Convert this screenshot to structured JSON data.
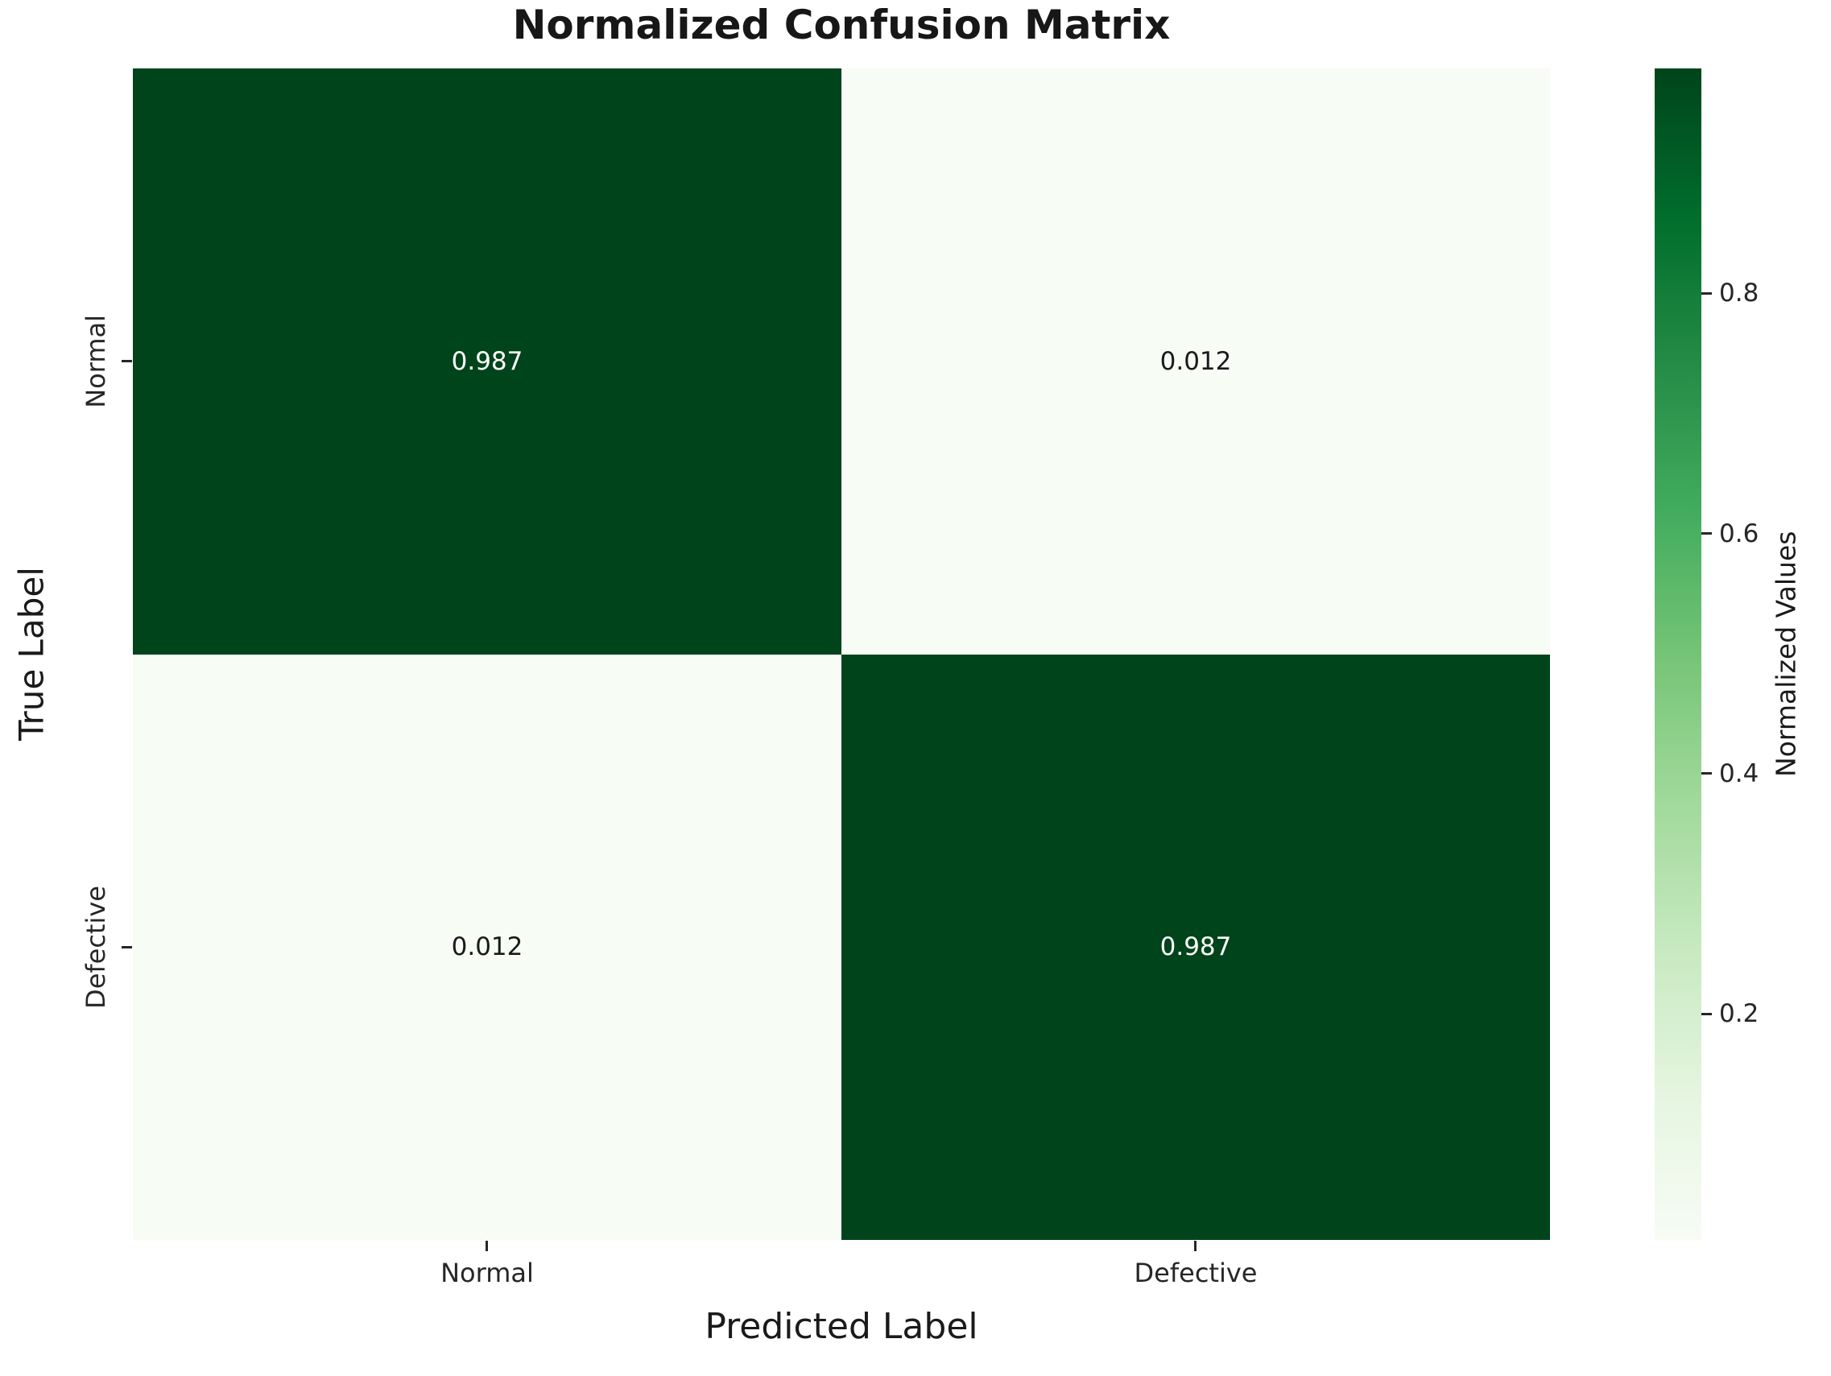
{
  "figure": {
    "background": "#ffffff"
  },
  "chart_data": {
    "type": "heatmap",
    "title": "Normalized Confusion Matrix",
    "xlabel": "Predicted Label",
    "ylabel": "True Label",
    "x_categories": [
      "Normal",
      "Defective"
    ],
    "y_categories": [
      "Normal",
      "Defective"
    ],
    "matrix": [
      [
        0.987,
        0.012
      ],
      [
        0.012,
        0.987
      ]
    ],
    "colorbar": {
      "label": "Normalized Values",
      "ticks": [
        0.8,
        0.6,
        0.4,
        0.2
      ],
      "vmin": 0.012,
      "vmax": 0.987,
      "position": "right"
    },
    "colormap": {
      "name": "Greens",
      "stops": [
        "#f7fcf5",
        "#e5f5e0",
        "#c7e9c0",
        "#a1d99b",
        "#74c476",
        "#41ab5d",
        "#238b45",
        "#006d2c",
        "#00441b"
      ]
    },
    "annotation_colors": {
      "on_dark": "#ffffff",
      "on_light": "#1a1a1a"
    },
    "grid": false,
    "legend": false
  }
}
